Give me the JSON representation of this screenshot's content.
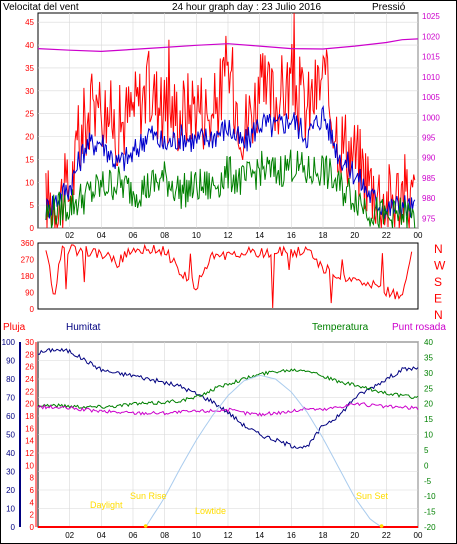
{
  "header": {
    "left_label": "Velocitat del vent",
    "title": "24 hour graph day : 23 Julio 2016",
    "right_label": "Pressió"
  },
  "colors": {
    "wind_gust": "#ff0000",
    "wind_avg": "#0000cc",
    "wind_low": "#008000",
    "pressure": "#cc00cc",
    "direction": "#ff0000",
    "humidity": "#000080",
    "temperature": "#008000",
    "dewpoint": "#cc00cc",
    "rain": "#ff0000",
    "sun": "#aaccee",
    "events": "#ffdd00"
  },
  "bottom_labels": {
    "rain": "Pluja",
    "humidity": "Humitat",
    "temperature": "Temperatura",
    "dewpoint": "Punt rosada"
  },
  "direction_labels": [
    "N",
    "W",
    "S",
    "E",
    "N"
  ],
  "sun_events": [
    "Daylight",
    "Sun Rise",
    "Lowtide",
    "Sun Set"
  ],
  "chart_data": [
    {
      "type": "line",
      "name": "wind-pressure",
      "x_ticks": [
        "02",
        "04",
        "06",
        "08",
        "10",
        "12",
        "14",
        "16",
        "18",
        "20",
        "22",
        "00"
      ],
      "y_left_ticks": [
        0,
        5,
        10,
        15,
        20,
        25,
        30,
        35,
        40,
        45
      ],
      "y_right_ticks": [
        975,
        980,
        985,
        990,
        995,
        1000,
        1005,
        1010,
        1015,
        1020,
        1025
      ],
      "ylim_left": [
        0,
        47
      ],
      "ylim_right": [
        972.6,
        1025.8
      ],
      "series": [
        {
          "name": "Velocitat del vent",
          "axis": "left",
          "color_key": "wind_gust",
          "x": [
            0.5,
            2,
            3,
            4,
            5,
            6,
            7,
            8,
            9,
            10,
            11,
            12,
            13,
            14,
            15,
            16,
            17,
            18,
            19,
            20,
            21,
            22,
            23,
            23.8
          ],
          "values": [
            5,
            8,
            24,
            27,
            22,
            26,
            30,
            26,
            25,
            28,
            24,
            35,
            22,
            30,
            28,
            32,
            26,
            33,
            20,
            16,
            10,
            6,
            8,
            6
          ]
        },
        {
          "axis": "left",
          "color_key": "wind_avg",
          "x": [
            0.5,
            2,
            3,
            4,
            5,
            6,
            7,
            8,
            9,
            10,
            11,
            12,
            13,
            14,
            15,
            16,
            17,
            18,
            19,
            20,
            21,
            22,
            23,
            23.8
          ],
          "values": [
            4,
            9,
            18,
            19,
            14,
            16,
            21,
            18,
            20,
            19,
            20,
            22,
            18,
            23,
            22,
            24,
            20,
            25,
            16,
            12,
            7,
            4,
            5,
            4
          ]
        },
        {
          "axis": "left",
          "color_key": "wind_low",
          "x": [
            0.5,
            2,
            3,
            4,
            5,
            6,
            7,
            8,
            9,
            10,
            11,
            12,
            13,
            14,
            15,
            16,
            17,
            18,
            19,
            20,
            21,
            22,
            23,
            23.8
          ],
          "values": [
            3,
            5,
            7,
            9,
            10,
            8,
            9,
            11,
            8,
            9,
            9,
            12,
            10,
            13,
            12,
            14,
            12,
            13,
            9,
            7,
            4,
            2,
            3,
            2
          ]
        },
        {
          "name": "Pressió",
          "axis": "right",
          "color_key": "pressure",
          "x": [
            0,
            2,
            4,
            6,
            8,
            10,
            12,
            14,
            16,
            18,
            20,
            22,
            23,
            24
          ],
          "values": [
            1017.0,
            1016.6,
            1016.3,
            1016.8,
            1017.3,
            1017.8,
            1018.2,
            1017.6,
            1017.0,
            1016.9,
            1017.6,
            1018.5,
            1019.2,
            1019.4
          ]
        }
      ]
    },
    {
      "type": "scatter",
      "name": "wind-direction",
      "ylim": [
        0,
        360
      ],
      "y_ticks": [
        0,
        90,
        180,
        270,
        360
      ],
      "series": [
        {
          "color_key": "direction",
          "x": [
            0.5,
            1,
            1.5,
            2,
            3,
            4,
            5,
            6,
            7,
            8,
            9,
            10,
            11,
            12,
            13,
            14,
            15,
            16,
            17,
            18,
            19,
            20,
            21,
            22,
            23,
            23.6
          ],
          "values": [
            330,
            60,
            340,
            320,
            320,
            300,
            250,
            330,
            330,
            320,
            200,
            120,
            280,
            300,
            310,
            300,
            320,
            300,
            320,
            220,
            190,
            140,
            130,
            100,
            50,
            340
          ]
        }
      ]
    },
    {
      "type": "line",
      "name": "humidity-temperature",
      "x_ticks": [
        "02",
        "04",
        "06",
        "08",
        "10",
        "12",
        "14",
        "16",
        "18",
        "20",
        "22",
        "00"
      ],
      "y_rain_ticks": [
        0,
        2,
        4,
        6,
        8,
        10,
        12,
        14,
        16,
        18,
        20,
        22,
        24,
        26,
        28,
        30
      ],
      "y_humidity_ticks": [
        0,
        10,
        20,
        30,
        40,
        50,
        60,
        70,
        80,
        90,
        100
      ],
      "y_temperature_ticks": [
        -20,
        -15,
        -10,
        -5,
        0,
        5,
        10,
        15,
        20,
        25,
        30,
        35,
        40
      ],
      "ylim_humidity": [
        0,
        100
      ],
      "ylim_temperature": [
        -20,
        40
      ],
      "ylim_rain": [
        0,
        30
      ],
      "series": [
        {
          "name": "Humitat",
          "axis": "humidity",
          "color_key": "humidity",
          "x": [
            0,
            1,
            2,
            3,
            4,
            5,
            6,
            7,
            8,
            9,
            10,
            11,
            12,
            13,
            14,
            15,
            16,
            17,
            18,
            19,
            20,
            21,
            22,
            23,
            24
          ],
          "values": [
            94,
            96,
            95,
            90,
            85,
            83,
            82,
            80,
            78,
            76,
            72,
            68,
            62,
            55,
            50,
            47,
            44,
            43,
            55,
            60,
            70,
            75,
            80,
            85,
            86
          ]
        },
        {
          "name": "Temperatura",
          "axis": "temperature",
          "color_key": "temperature",
          "x": [
            0,
            1,
            2,
            3,
            4,
            5,
            6,
            7,
            8,
            9,
            10,
            11,
            12,
            13,
            14,
            15,
            16,
            17,
            18,
            19,
            20,
            21,
            22,
            23,
            24
          ],
          "values": [
            19.5,
            19.5,
            19.2,
            19,
            19,
            19.3,
            20,
            20,
            20.5,
            21,
            22,
            24.5,
            26.5,
            28,
            29.5,
            30.5,
            31,
            31,
            29,
            27,
            26,
            24.5,
            23.5,
            22.5,
            22
          ]
        },
        {
          "name": "Punt rosada",
          "axis": "temperature",
          "color_key": "dewpoint",
          "x": [
            0,
            2,
            4,
            6,
            8,
            10,
            12,
            13,
            14,
            15,
            16,
            17,
            18,
            19,
            20,
            22,
            24
          ],
          "values": [
            19,
            18.5,
            17.5,
            17,
            17,
            17.5,
            18,
            17,
            16.5,
            17,
            17.5,
            18.5,
            18,
            19,
            20,
            19,
            18.5
          ]
        },
        {
          "name": "Pluja",
          "axis": "rain",
          "color_key": "rain",
          "x": [
            0,
            24
          ],
          "values": [
            0,
            0
          ]
        },
        {
          "axis": "humidity",
          "color_key": "sun",
          "x": [
            6.8,
            8,
            9,
            10,
            11,
            12,
            13,
            14,
            15,
            16,
            17,
            18,
            19,
            20,
            21,
            21.7
          ],
          "values": [
            0,
            16,
            32,
            47,
            60,
            71,
            79,
            82,
            80,
            73,
            62,
            48,
            32,
            16,
            4,
            0
          ]
        }
      ]
    }
  ]
}
